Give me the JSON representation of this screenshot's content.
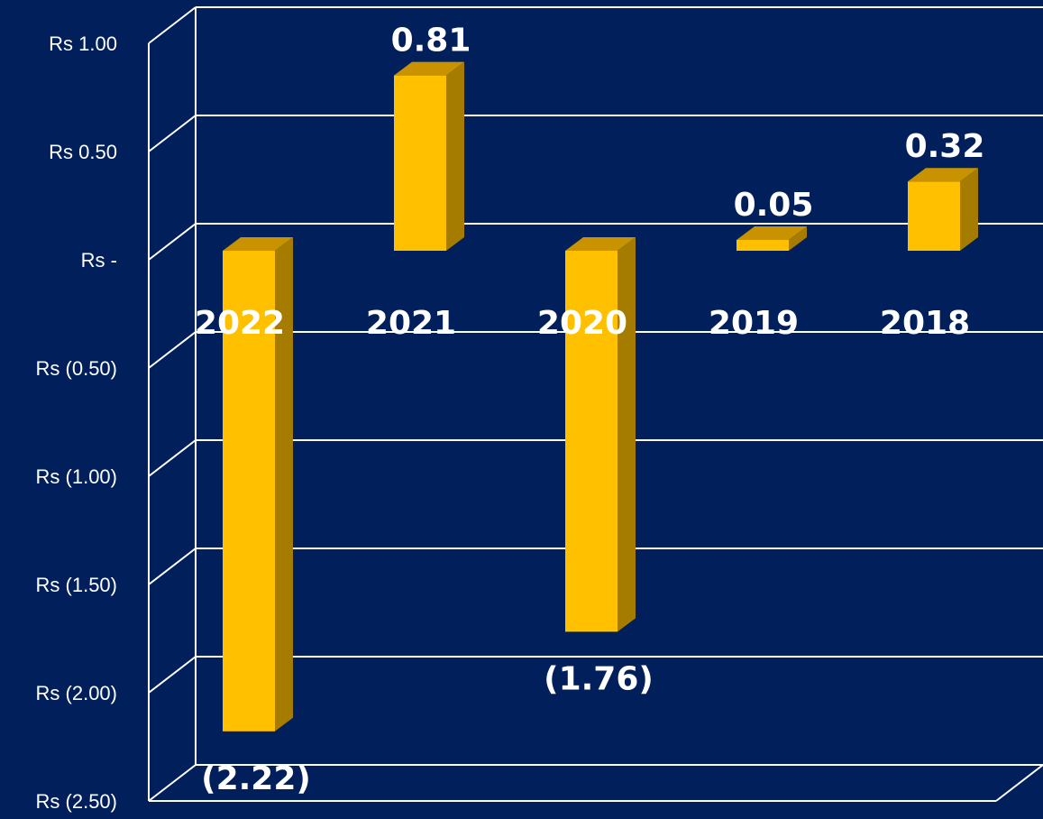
{
  "chart_data": {
    "type": "bar",
    "categories": [
      "2022",
      "2021",
      "2020",
      "2019",
      "2018"
    ],
    "values": [
      -2.22,
      0.81,
      -1.76,
      0.05,
      0.32
    ],
    "data_labels": [
      "(2.22)",
      "0.81",
      "(1.76)",
      "0.05",
      "0.32"
    ],
    "y_tick_labels": [
      "Rs 1.00",
      "Rs 0.50",
      "Rs -",
      "Rs (0.50)",
      "Rs (1.00)",
      "Rs (1.50)",
      "Rs (2.00)",
      "Rs (2.50)"
    ],
    "y_ticks": [
      1.0,
      0.5,
      0,
      -0.5,
      -1.0,
      -1.5,
      -2.0,
      -2.5
    ],
    "ylim": [
      -2.5,
      1.0
    ],
    "grid": true,
    "style": "3d-column",
    "colors": {
      "background": "#001F5B",
      "bar_front": "#FFC000",
      "bar_side": "#A67C00",
      "bar_top": "#C89200",
      "gridline": "#FFFFFF",
      "text": "#FFFFFF"
    }
  }
}
